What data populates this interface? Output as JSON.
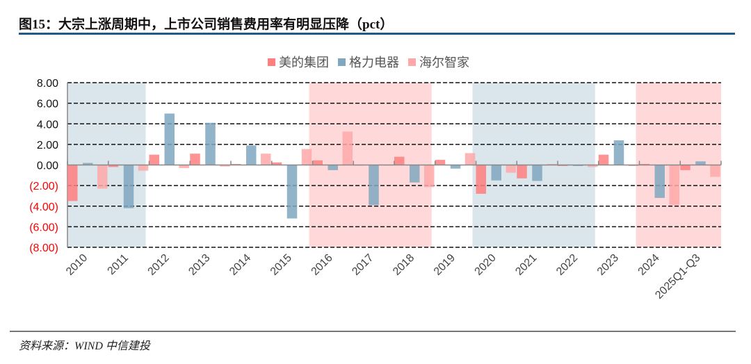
{
  "title": "图15：大宗上涨周期中，上市公司销售费用率有明显压降（pct）",
  "source": "资料来源：WIND  中信建投",
  "chart_data": {
    "type": "bar",
    "title": "图15：大宗上涨周期中，上市公司销售费用率有明显压降（pct）",
    "categories": [
      "2010",
      "2011",
      "2012",
      "2013",
      "2014",
      "2015",
      "2016",
      "2017",
      "2018",
      "2019",
      "2020",
      "2021",
      "2022",
      "2023",
      "2024",
      "2025Q1-Q3"
    ],
    "series": [
      {
        "name": "美的集团",
        "color": "#ff7f7f",
        "values": [
          -3.5,
          -0.2,
          1.0,
          1.1,
          0.1,
          0.25,
          0.45,
          -0.05,
          0.8,
          0.5,
          -2.8,
          -1.3,
          -0.1,
          1.0,
          0.1,
          -0.5
        ]
      },
      {
        "name": "格力电器",
        "color": "#7fa7c0",
        "values": [
          0.2,
          -4.2,
          5.0,
          4.1,
          1.9,
          -5.2,
          -0.5,
          -3.9,
          -1.7,
          -0.35,
          -1.5,
          -1.55,
          -0.1,
          2.4,
          -3.2,
          0.35
        ]
      },
      {
        "name": "海尔智家",
        "color": "#ffa8a8",
        "values": [
          -2.3,
          -0.55,
          -0.3,
          -0.15,
          1.1,
          1.55,
          3.25,
          0.0,
          -2.15,
          1.15,
          -0.75,
          0.1,
          -0.2,
          -0.1,
          -3.9,
          -1.15
        ]
      }
    ],
    "yticks": [
      "8.00",
      "6.00",
      "4.00",
      "2.00",
      "0.00",
      "(2.00)",
      "(4.00)",
      "(6.00)",
      "(8.00)"
    ],
    "ylim": [
      -8,
      8
    ],
    "grid": true,
    "legend": "top-center",
    "negative_tick_color": "#ff0000",
    "shaded_periods": [
      {
        "from": 0,
        "to": 1,
        "color": "#d9e4eb"
      },
      {
        "from": 6,
        "to": 8,
        "color": "#ffd7d8"
      },
      {
        "from": 10,
        "to": 12,
        "color": "#d9e4eb"
      },
      {
        "from": 14,
        "to": 15,
        "color": "#ffd7d8"
      }
    ]
  }
}
